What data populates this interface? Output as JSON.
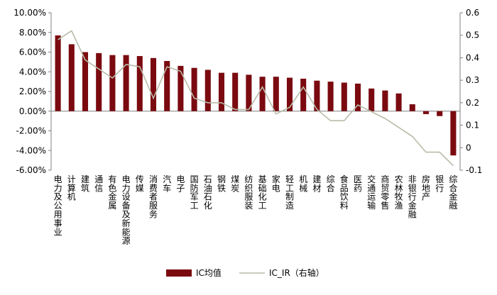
{
  "chart_data": {
    "type": "bar",
    "categories": [
      "电力及公用事业",
      "计算机",
      "建筑",
      "通信",
      "有色金属",
      "电力设备及新能源",
      "传媒",
      "消费者服务",
      "汽车",
      "电子",
      "国防军工",
      "石油石化",
      "钢铁",
      "煤炭",
      "纺织服装",
      "基础化工",
      "家电",
      "轻工制造",
      "机械",
      "建材",
      "综合",
      "食品饮料",
      "医药",
      "交通运输",
      "商贸零售",
      "农林牧渔",
      "非银行金融",
      "房地产",
      "银行",
      "综合金融"
    ],
    "series": [
      {
        "name": "IC均值",
        "axis": "left",
        "type": "bar",
        "values": [
          7.7,
          6.8,
          6.0,
          5.9,
          5.7,
          5.7,
          5.6,
          5.4,
          5.1,
          4.6,
          4.4,
          4.2,
          3.9,
          3.9,
          3.7,
          3.5,
          3.5,
          3.4,
          3.3,
          3.1,
          3.0,
          2.9,
          2.8,
          2.3,
          2.1,
          1.8,
          0.7,
          -0.3,
          -0.5,
          -4.5
        ]
      },
      {
        "name": "IC_IR（右轴）",
        "axis": "right",
        "type": "line",
        "values": [
          0.48,
          0.52,
          0.39,
          0.35,
          0.31,
          0.37,
          0.36,
          0.22,
          0.36,
          0.34,
          0.22,
          0.2,
          0.2,
          0.17,
          0.17,
          0.27,
          0.15,
          0.18,
          0.27,
          0.17,
          0.12,
          0.12,
          0.19,
          0.16,
          0.13,
          0.09,
          0.05,
          -0.02,
          -0.02,
          -0.08
        ]
      }
    ],
    "left_axis": {
      "min": -6,
      "max": 10,
      "step": 2,
      "tick_labels": [
        "-6.00%",
        "-4.00%",
        "-2.00%",
        "0.00%",
        "2.00%",
        "4.00%",
        "6.00%",
        "8.00%",
        "10.00%"
      ]
    },
    "right_axis": {
      "min": -0.1,
      "max": 0.6,
      "step": 0.1,
      "tick_labels": [
        "-0.1",
        "0",
        "0.1",
        "0.2",
        "0.3",
        "0.4",
        "0.5",
        "0.6"
      ]
    },
    "grid": false,
    "legend": {
      "position": "bottom",
      "items": [
        {
          "label": "IC均值",
          "swatch": "bar"
        },
        {
          "label": "IC_IR（右轴）",
          "swatch": "line"
        }
      ]
    },
    "colors": {
      "bar": "#7a0a10",
      "line": "#b8bca8",
      "axis": "#808080"
    }
  }
}
